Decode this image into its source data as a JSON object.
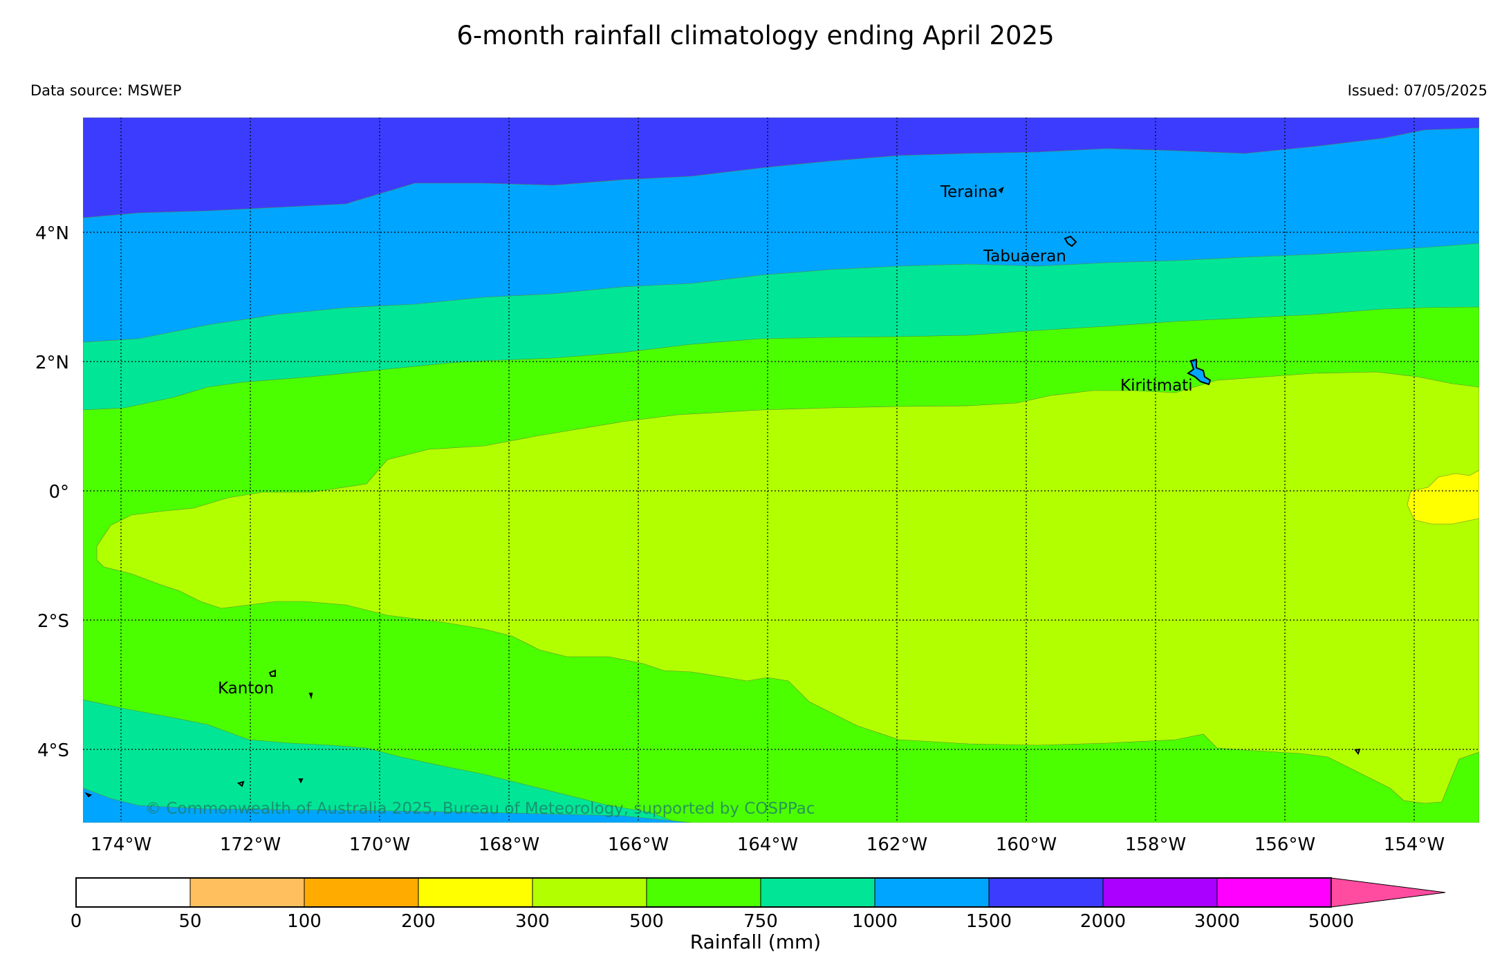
{
  "title": "6-month rainfall climatology ending April 2025",
  "data_source": "Data source: MSWEP",
  "issued": "Issued: 07/05/2025",
  "copyright": "© Commonwealth of Australia 2025, Bureau of Meteorology, supported by COSPPac",
  "lon_labels": [
    "174°W",
    "172°W",
    "170°W",
    "168°W",
    "166°W",
    "164°W",
    "162°W",
    "160°W",
    "158°W",
    "156°W",
    "154°W"
  ],
  "lat_labels": [
    "4°N",
    "2°N",
    "0°",
    "2°S",
    "4°S"
  ],
  "places": {
    "teraina": "Teraina",
    "tabuaeran": "Tabuaeran",
    "kiritimati": "Kiritimati",
    "kanton": "Kanton"
  },
  "colorbar": {
    "title": "Rainfall (mm)",
    "ticks": [
      "0",
      "50",
      "100",
      "200",
      "300",
      "500",
      "750",
      "1000",
      "1500",
      "2000",
      "3000",
      "5000"
    ],
    "colors": [
      "#ffffff",
      "#ffbf5f",
      "#ffab00",
      "#ffff00",
      "#b2ff00",
      "#4cff00",
      "#00e696",
      "#00a5ff",
      "#3c3cff",
      "#aa00ff",
      "#ff00ff",
      "#ff4ca0"
    ]
  },
  "zone_colors": {
    "band_1500_2000": "#3c3cff",
    "band_1000_1500": "#00a5ff",
    "band_750_1000": "#00e696",
    "band_500_750": "#4cff00",
    "band_300_500": "#b2ff00",
    "band_200_300": "#ffff00"
  }
}
